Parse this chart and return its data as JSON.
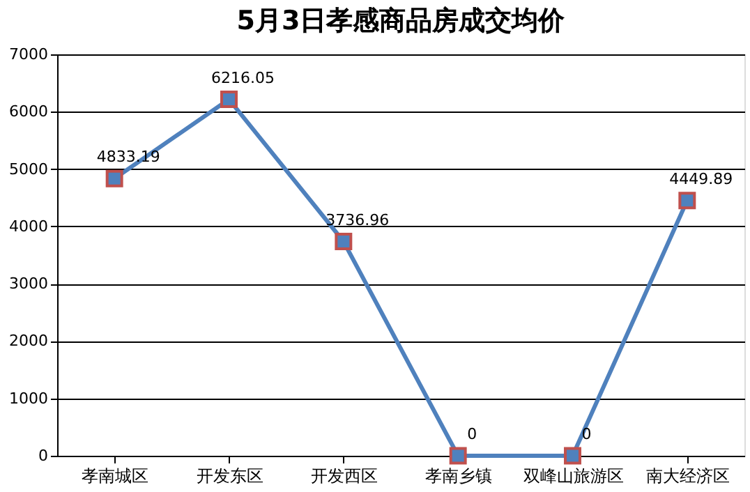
{
  "chart_data": {
    "type": "line",
    "title": "5月3日孝感商品房成交均价",
    "categories": [
      "孝南城区",
      "开发东区",
      "开发西区",
      "孝南乡镇",
      "双峰山旅游区",
      "南大经济区"
    ],
    "series": [
      {
        "color": "#4f81bd",
        "values": [
          4833.19,
          6216.05,
          3736.96,
          0,
          0,
          4449.89
        ]
      }
    ],
    "ylim": [
      0,
      7000
    ],
    "yticks": [
      0,
      1000,
      2000,
      3000,
      4000,
      5000,
      6000,
      7000
    ],
    "grid": "y",
    "marker": "square",
    "line_style": "solid",
    "data_labels": true
  }
}
